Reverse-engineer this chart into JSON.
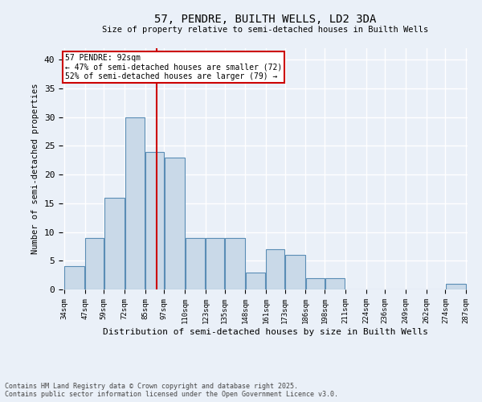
{
  "title1": "57, PENDRE, BUILTH WELLS, LD2 3DA",
  "title2": "Size of property relative to semi-detached houses in Builth Wells",
  "xlabel": "Distribution of semi-detached houses by size in Builth Wells",
  "ylabel": "Number of semi-detached properties",
  "bins": [
    34,
    47,
    59,
    72,
    85,
    97,
    110,
    123,
    135,
    148,
    161,
    173,
    186,
    198,
    211,
    224,
    236,
    249,
    262,
    274,
    287
  ],
  "bar_heights": [
    4,
    9,
    16,
    30,
    24,
    23,
    9,
    9,
    9,
    3,
    7,
    6,
    2,
    2,
    0,
    0,
    0,
    0,
    0,
    1
  ],
  "bar_color": "#c9d9e8",
  "bar_edge_color": "#5a8db5",
  "property_value": 92,
  "annotation_title": "57 PENDRE: 92sqm",
  "annotation_line1": "← 47% of semi-detached houses are smaller (72)",
  "annotation_line2": "52% of semi-detached houses are larger (79) →",
  "vline_color": "#cc0000",
  "annotation_box_color": "#ffffff",
  "annotation_box_edge": "#cc0000",
  "background_color": "#eaf0f8",
  "grid_color": "#ffffff",
  "ylim": [
    0,
    42
  ],
  "yticks": [
    0,
    5,
    10,
    15,
    20,
    25,
    30,
    35,
    40
  ],
  "footnote1": "Contains HM Land Registry data © Crown copyright and database right 2025.",
  "footnote2": "Contains public sector information licensed under the Open Government Licence v3.0."
}
